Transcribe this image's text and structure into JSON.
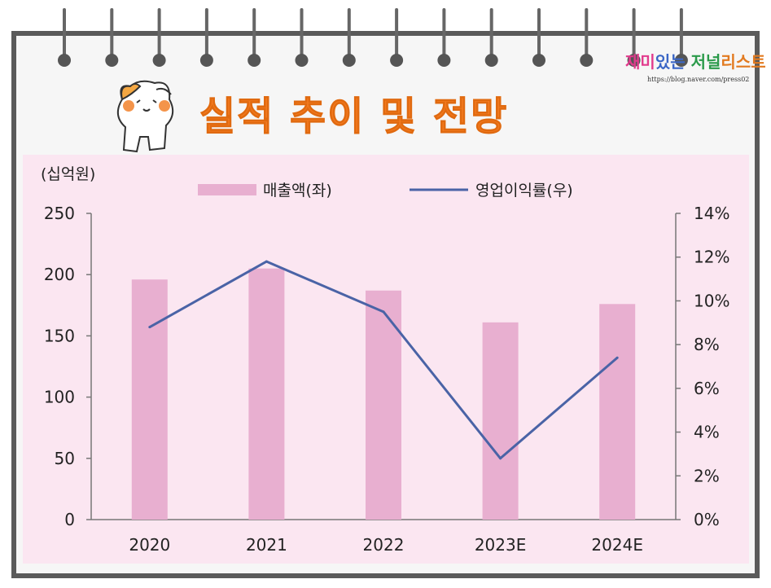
{
  "page": {
    "title": "실적 추이 및 전망",
    "brand": "재미있는 저널리스트",
    "brand_url": "https://blog.naver.com/press02",
    "icon": "cat-mascot-icon"
  },
  "chart_data": {
    "type": "bar",
    "categories": [
      "2020",
      "2021",
      "2022",
      "2023E",
      "2024E"
    ],
    "series": [
      {
        "name": "매출액(좌)",
        "type": "bar",
        "axis": "left",
        "color": "#e8afd0",
        "values": [
          196,
          205,
          187,
          161,
          176
        ]
      },
      {
        "name": "영업이익률(우)",
        "type": "line",
        "axis": "right",
        "color": "#4a63a6",
        "values": [
          8.8,
          11.8,
          9.5,
          2.8,
          7.4
        ]
      }
    ],
    "left_axis": {
      "label": "(십억원)",
      "ylim": [
        0,
        250
      ],
      "ticks": [
        "0",
        "50",
        "100",
        "150",
        "200",
        "250"
      ]
    },
    "right_axis": {
      "ylim": [
        0,
        14
      ],
      "ticks": [
        "0%",
        "2%",
        "4%",
        "6%",
        "8%",
        "10%",
        "12%",
        "14%"
      ]
    },
    "legend": "top-center",
    "grid": false
  }
}
